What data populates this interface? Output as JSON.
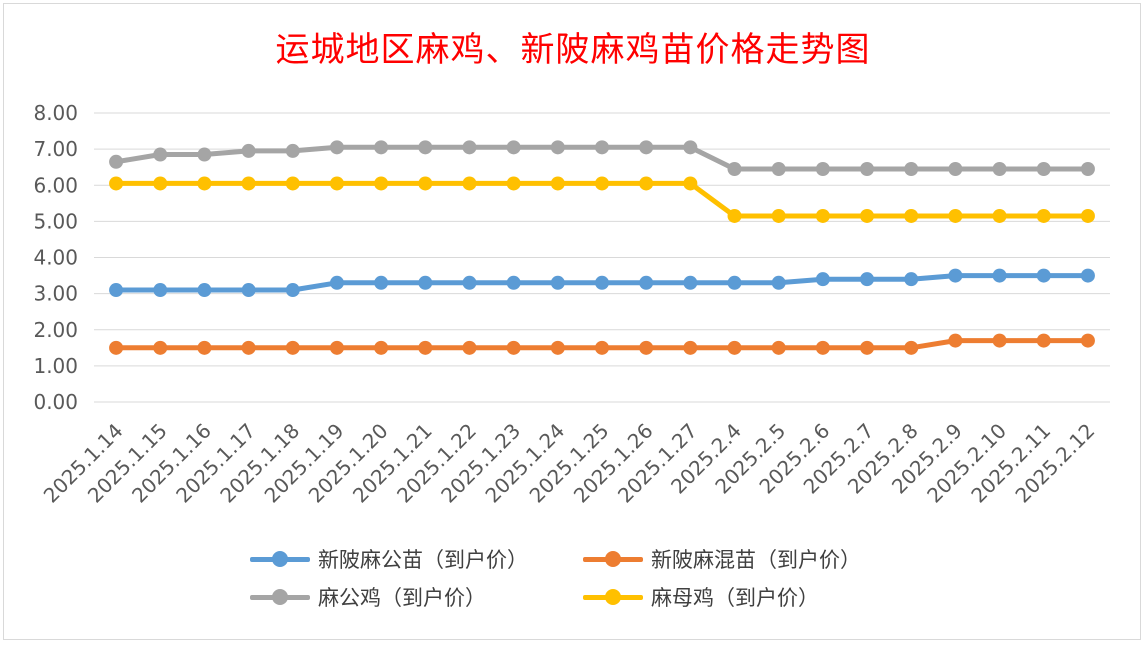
{
  "title": "运城地区麻鸡、新陂麻鸡苗价格走势图",
  "chart_data": {
    "type": "line",
    "title": "运城地区麻鸡、新陂麻鸡苗价格走势图",
    "categories": [
      "2025.1.14",
      "2025.1.15",
      "2025.1.16",
      "2025.1.17",
      "2025.1.18",
      "2025.1.19",
      "2025.1.20",
      "2025.1.21",
      "2025.1.22",
      "2025.1.23",
      "2025.1.24",
      "2025.1.25",
      "2025.1.26",
      "2025.1.27",
      "2025.2.4",
      "2025.2.5",
      "2025.2.6",
      "2025.2.7",
      "2025.2.8",
      "2025.2.9",
      "2025.2.10",
      "2025.2.11",
      "2025.2.12"
    ],
    "ylim": [
      0,
      8
    ],
    "yticks": [
      "0.00",
      "1.00",
      "2.00",
      "3.00",
      "4.00",
      "5.00",
      "6.00",
      "7.00",
      "8.00"
    ],
    "grid": true,
    "legend_position": "bottom",
    "series": [
      {
        "name": "新陂麻公苗（到户价）",
        "color": "#5b9bd5",
        "values": [
          3.1,
          3.1,
          3.1,
          3.1,
          3.1,
          3.3,
          3.3,
          3.3,
          3.3,
          3.3,
          3.3,
          3.3,
          3.3,
          3.3,
          3.3,
          3.3,
          3.4,
          3.4,
          3.4,
          3.5,
          3.5,
          3.5,
          3.5
        ]
      },
      {
        "name": "新陂麻混苗（到户价）",
        "color": "#ed7d31",
        "values": [
          1.5,
          1.5,
          1.5,
          1.5,
          1.5,
          1.5,
          1.5,
          1.5,
          1.5,
          1.5,
          1.5,
          1.5,
          1.5,
          1.5,
          1.5,
          1.5,
          1.5,
          1.5,
          1.5,
          1.7,
          1.7,
          1.7,
          1.7
        ]
      },
      {
        "name": "麻公鸡（到户价）",
        "color": "#a5a5a5",
        "values": [
          6.65,
          6.85,
          6.85,
          6.95,
          6.95,
          7.05,
          7.05,
          7.05,
          7.05,
          7.05,
          7.05,
          7.05,
          7.05,
          7.05,
          6.45,
          6.45,
          6.45,
          6.45,
          6.45,
          6.45,
          6.45,
          6.45,
          6.45
        ]
      },
      {
        "name": "麻母鸡（到户价）",
        "color": "#ffc000",
        "values": [
          6.05,
          6.05,
          6.05,
          6.05,
          6.05,
          6.05,
          6.05,
          6.05,
          6.05,
          6.05,
          6.05,
          6.05,
          6.05,
          6.05,
          5.15,
          5.15,
          5.15,
          5.15,
          5.15,
          5.15,
          5.15,
          5.15,
          5.15
        ]
      }
    ]
  }
}
